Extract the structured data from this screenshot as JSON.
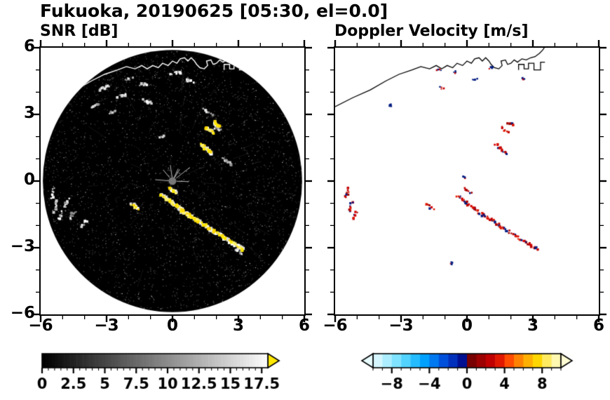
{
  "title": "Fukuoka, 20190625 [05:30, el=0.0]",
  "chart_data": {
    "type": "heatmap",
    "noise_seed": 20190625,
    "panels": [
      {
        "id": "snr",
        "title": "SNR [dB]",
        "xlim": [
          -6,
          6
        ],
        "ylim": [
          -6,
          6
        ],
        "xticks": [
          -6,
          -3,
          0,
          3,
          6
        ],
        "yticks": [
          -6,
          -3,
          0,
          3,
          6
        ],
        "minor_tick_step": 1,
        "show_ytick_labels": true,
        "disc": {
          "center": [
            0,
            0
          ],
          "radius": 5.9,
          "color": "#000000"
        },
        "center_dot_color": "#787878",
        "echo_color": "#ffe800",
        "colorbar": {
          "range": [
            0,
            18
          ],
          "tick_step": 0.5,
          "label_values": [
            0,
            2.5,
            5,
            7.5,
            10,
            12.5,
            15,
            17.5
          ],
          "style": "grayscale",
          "over_arrow_color": "#ffe800"
        }
      },
      {
        "id": "doppler",
        "title": "Doppler Velocity [m/s]",
        "xlim": [
          -6,
          6
        ],
        "ylim": [
          -6,
          6
        ],
        "xticks": [
          -6,
          -3,
          0,
          3,
          6
        ],
        "yticks": [
          -6,
          -3,
          0,
          3,
          6
        ],
        "minor_tick_step": 1,
        "show_ytick_labels": false,
        "negative_color": "#001a80",
        "positive_color": "#c30000",
        "colorbar": {
          "range": [
            -10,
            10
          ],
          "tick_step": 1,
          "label_values": [
            -8,
            -4,
            0,
            4,
            8
          ],
          "colors": [
            "#d6f6ff",
            "#aceeff",
            "#7fe2ff",
            "#52d2ff",
            "#25bcff",
            "#00a0ff",
            "#0078f0",
            "#0050dc",
            "#0030bc",
            "#001090",
            "#780000",
            "#9c0000",
            "#c00000",
            "#e01800",
            "#ff4c00",
            "#ff8200",
            "#ffb000",
            "#ffd600",
            "#ffea60",
            "#fff8b0"
          ],
          "under_arrow_color": "#e8fcff",
          "over_arrow_color": "#fffcd4"
        }
      }
    ],
    "echoes": {
      "strong": [
        {
          "x": -0.25,
          "y": -0.8,
          "ang": -35,
          "len": 0.55
        },
        {
          "x": 0.15,
          "y": -1.1,
          "ang": -35,
          "len": 0.55
        },
        {
          "x": 0.55,
          "y": -1.4,
          "ang": -35,
          "len": 0.55
        },
        {
          "x": 0.95,
          "y": -1.65,
          "ang": -35,
          "len": 0.55
        },
        {
          "x": 1.4,
          "y": -1.95,
          "ang": -35,
          "len": 0.5
        },
        {
          "x": 1.8,
          "y": -2.2,
          "ang": -35,
          "len": 0.45
        },
        {
          "x": 2.3,
          "y": -2.5,
          "ang": -35,
          "len": 0.4
        },
        {
          "x": 2.75,
          "y": -2.8,
          "ang": -35,
          "len": 0.4
        },
        {
          "x": 3.1,
          "y": -3.0,
          "ang": -35,
          "len": 0.3
        },
        {
          "x": 0.05,
          "y": -0.45,
          "ang": -35,
          "len": 0.3
        },
        {
          "x": 1.55,
          "y": 1.45,
          "ang": -40,
          "len": 0.6
        },
        {
          "x": 1.7,
          "y": 2.3,
          "ang": -35,
          "len": 0.35
        },
        {
          "x": 2.0,
          "y": 2.55,
          "ang": -35,
          "len": 0.3
        },
        {
          "x": -1.7,
          "y": -1.15,
          "ang": -30,
          "len": 0.35
        }
      ],
      "edge": [
        {
          "x": -5.45,
          "y": -0.55,
          "ang": 75,
          "len": 0.4
        },
        {
          "x": -5.3,
          "y": -1.15,
          "ang": 70,
          "len": 0.45
        },
        {
          "x": -5.1,
          "y": -1.55,
          "ang": 65,
          "len": 0.35
        }
      ],
      "clutter": [
        {
          "x": -3.1,
          "y": 4.2,
          "ang": 20,
          "len": 0.5
        },
        {
          "x": -2.3,
          "y": 3.85,
          "ang": 10,
          "len": 0.45
        },
        {
          "x": -1.3,
          "y": 4.35,
          "ang": 0,
          "len": 0.35
        },
        {
          "x": -1.15,
          "y": 3.55,
          "ang": -20,
          "len": 0.4
        },
        {
          "x": -2.75,
          "y": 3.1,
          "ang": 15,
          "len": 0.35
        },
        {
          "x": -3.55,
          "y": 3.4,
          "ang": 25,
          "len": 0.3
        },
        {
          "x": -2.0,
          "y": 4.6,
          "ang": 10,
          "len": 0.3
        },
        {
          "x": 0.15,
          "y": 4.85,
          "ang": 0,
          "len": 0.4
        },
        {
          "x": 0.8,
          "y": 4.5,
          "ang": -10,
          "len": 0.3
        },
        {
          "x": 1.6,
          "y": 3.1,
          "ang": -30,
          "len": 0.45
        },
        {
          "x": 2.05,
          "y": 2.35,
          "ang": -30,
          "len": 0.3
        },
        {
          "x": 2.5,
          "y": 0.9,
          "ang": -35,
          "len": 0.5
        },
        {
          "x": -0.5,
          "y": 2.0,
          "ang": 0,
          "len": 0.25
        },
        {
          "x": -4.85,
          "y": -1.0,
          "ang": 60,
          "len": 0.4
        },
        {
          "x": -4.55,
          "y": -1.5,
          "ang": 55,
          "len": 0.4
        },
        {
          "x": -4.05,
          "y": -1.95,
          "ang": 50,
          "len": 0.35
        },
        {
          "x": 3.0,
          "y": -3.15,
          "ang": -35,
          "len": 0.35
        }
      ],
      "doppler_specks": [
        {
          "x": -1.3,
          "y": 5.0
        },
        {
          "x": -0.55,
          "y": 4.9
        },
        {
          "x": -1.15,
          "y": 4.2
        },
        {
          "x": -3.5,
          "y": 3.4
        },
        {
          "x": 2.6,
          "y": 4.6
        },
        {
          "x": 1.1,
          "y": 5.1
        },
        {
          "x": 0.35,
          "y": 4.55
        },
        {
          "x": -0.1,
          "y": 0.15
        },
        {
          "x": -0.7,
          "y": -3.7
        }
      ]
    },
    "coastline": {
      "main": [
        [
          -6.0,
          3.35
        ],
        [
          -5.2,
          3.75
        ],
        [
          -4.4,
          4.1
        ],
        [
          -3.7,
          4.5
        ],
        [
          -3.1,
          4.8
        ],
        [
          -2.5,
          5.0
        ],
        [
          -2.1,
          5.15
        ],
        [
          -1.7,
          5.05
        ],
        [
          -1.4,
          5.2
        ],
        [
          -1.15,
          5.05
        ],
        [
          -0.9,
          5.2
        ],
        [
          -0.65,
          5.1
        ],
        [
          -0.45,
          5.3
        ],
        [
          -0.2,
          5.2
        ],
        [
          0.0,
          5.4
        ],
        [
          0.2,
          5.3
        ],
        [
          0.35,
          5.5
        ],
        [
          0.55,
          5.55
        ],
        [
          0.7,
          5.4
        ],
        [
          0.85,
          5.55
        ],
        [
          1.0,
          5.4
        ],
        [
          1.1,
          5.25
        ],
        [
          1.25,
          5.1
        ],
        [
          1.45,
          5.05
        ],
        [
          1.6,
          5.2
        ],
        [
          1.55,
          5.4
        ],
        [
          1.75,
          5.45
        ],
        [
          1.85,
          5.25
        ],
        [
          2.0,
          5.3
        ],
        [
          2.15,
          5.45
        ],
        [
          2.3,
          5.35
        ],
        [
          2.5,
          5.5
        ],
        [
          2.7,
          5.45
        ],
        [
          2.9,
          5.55
        ],
        [
          3.1,
          5.6
        ],
        [
          3.3,
          5.75
        ],
        [
          3.45,
          5.9
        ],
        [
          3.55,
          6.05
        ]
      ],
      "island": [
        [
          2.35,
          5.0
        ],
        [
          2.35,
          5.25
        ],
        [
          2.6,
          5.25
        ],
        [
          2.6,
          5.05
        ],
        [
          2.8,
          5.05
        ],
        [
          2.8,
          5.3
        ],
        [
          3.05,
          5.3
        ],
        [
          3.05,
          5.0
        ],
        [
          3.35,
          5.0
        ],
        [
          3.35,
          5.35
        ],
        [
          3.55,
          5.35
        ]
      ]
    }
  }
}
